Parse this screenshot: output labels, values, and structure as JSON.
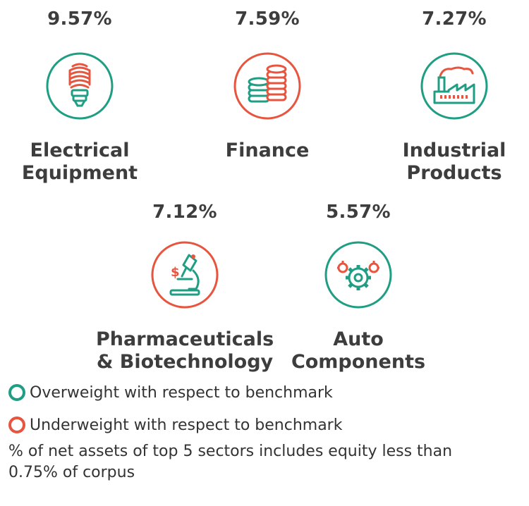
{
  "colors": {
    "overweight": "#1f9e84",
    "underweight": "#e8553f",
    "text": "#3d3d3d"
  },
  "sectors": [
    {
      "percent": "9.57%",
      "name": "Electrical\nEquipment",
      "status": "overweight",
      "icon": "light-bulb-icon"
    },
    {
      "percent": "7.59%",
      "name": "Finance",
      "status": "underweight",
      "icon": "coins-icon"
    },
    {
      "percent": "7.27%",
      "name": "Industrial\nProducts",
      "status": "overweight",
      "icon": "factory-icon"
    },
    {
      "percent": "7.12%",
      "name": "Pharmaceuticals\n& Biotechnology",
      "status": "underweight",
      "icon": "microscope-icon"
    },
    {
      "percent": "5.57%",
      "name": "Auto\nComponents",
      "status": "overweight",
      "icon": "gears-icon"
    }
  ],
  "legend": {
    "overweight_label": "Overweight with respect to benchmark",
    "underweight_label": "Underweight with respect to benchmark"
  },
  "footnote": "% of net assets of top 5 sectors includes equity less than 0.75% of corpus"
}
